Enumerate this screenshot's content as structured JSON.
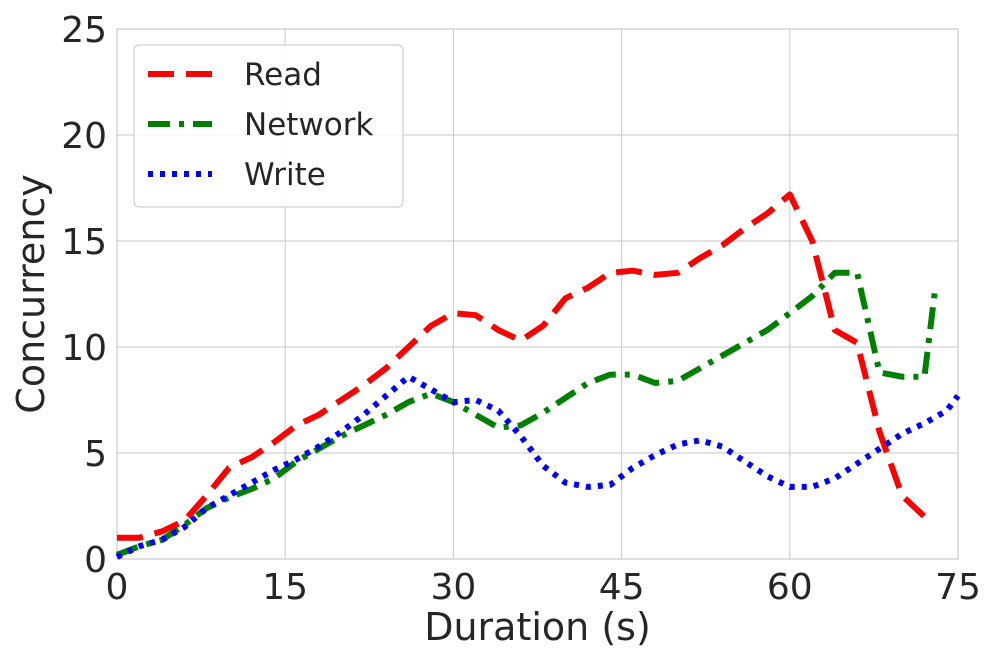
{
  "chart_data": {
    "type": "line",
    "title": "",
    "xlabel": "Duration (s)",
    "ylabel": "Concurrency",
    "xlim": [
      0,
      75
    ],
    "ylim": [
      0,
      25
    ],
    "xticks": [
      "0",
      "15",
      "30",
      "45",
      "60",
      "75"
    ],
    "yticks": [
      "0",
      "5",
      "10",
      "15",
      "20",
      "25"
    ],
    "grid": true,
    "legend_position": "top-left",
    "series": [
      {
        "name": "Read",
        "color": "#ff0000",
        "style": "dashed",
        "x": [
          0,
          2,
          4,
          6,
          8,
          10,
          12,
          14,
          16,
          18,
          20,
          22,
          24,
          26,
          28,
          30,
          32,
          34,
          36,
          38,
          40,
          42,
          44,
          46,
          48,
          50,
          52,
          54,
          56,
          58,
          60,
          62,
          64,
          66,
          68,
          70,
          72,
          73
        ],
        "y": [
          1.0,
          1.0,
          1.3,
          1.8,
          3.0,
          4.3,
          4.8,
          5.5,
          6.3,
          6.8,
          7.5,
          8.2,
          9.0,
          10.0,
          11.0,
          11.6,
          11.5,
          10.8,
          10.3,
          11.0,
          12.3,
          12.8,
          13.5,
          13.6,
          13.4,
          13.5,
          14.2,
          14.8,
          15.6,
          16.3,
          17.2,
          15.0,
          10.8,
          10.2,
          6.0,
          3.0,
          2.0,
          2.0
        ]
      },
      {
        "name": "Network",
        "color": "#008000",
        "style": "dashdot",
        "x": [
          0,
          2,
          4,
          6,
          8,
          10,
          12,
          14,
          16,
          18,
          20,
          22,
          24,
          26,
          28,
          30,
          32,
          34,
          36,
          38,
          40,
          42,
          44,
          46,
          48,
          50,
          52,
          54,
          56,
          58,
          60,
          62,
          64,
          66,
          68,
          70,
          72,
          73
        ],
        "y": [
          0.2,
          0.6,
          0.9,
          1.6,
          2.4,
          2.9,
          3.3,
          3.8,
          4.6,
          5.2,
          5.8,
          6.3,
          6.8,
          7.4,
          7.8,
          7.4,
          6.8,
          6.2,
          6.3,
          6.9,
          7.6,
          8.3,
          8.7,
          8.7,
          8.3,
          8.4,
          9.0,
          9.6,
          10.2,
          10.8,
          11.6,
          12.4,
          13.5,
          13.5,
          8.8,
          8.6,
          8.6,
          12.9
        ]
      },
      {
        "name": "Write",
        "color": "#0000ff",
        "style": "dotted",
        "x": [
          0,
          2,
          4,
          6,
          8,
          10,
          12,
          14,
          16,
          18,
          20,
          22,
          24,
          26,
          28,
          30,
          32,
          34,
          36,
          38,
          40,
          42,
          44,
          46,
          48,
          50,
          52,
          54,
          56,
          58,
          60,
          62,
          64,
          66,
          68,
          70,
          72,
          74,
          75
        ],
        "y": [
          0.1,
          0.6,
          0.9,
          1.5,
          2.4,
          3.0,
          3.6,
          4.2,
          4.7,
          5.3,
          6.0,
          6.8,
          7.7,
          8.6,
          8.0,
          7.4,
          7.5,
          7.0,
          5.8,
          4.4,
          3.6,
          3.4,
          3.5,
          4.3,
          4.9,
          5.4,
          5.6,
          5.3,
          4.6,
          3.9,
          3.4,
          3.4,
          3.8,
          4.5,
          5.2,
          5.9,
          6.4,
          7.0,
          7.7
        ]
      }
    ]
  }
}
